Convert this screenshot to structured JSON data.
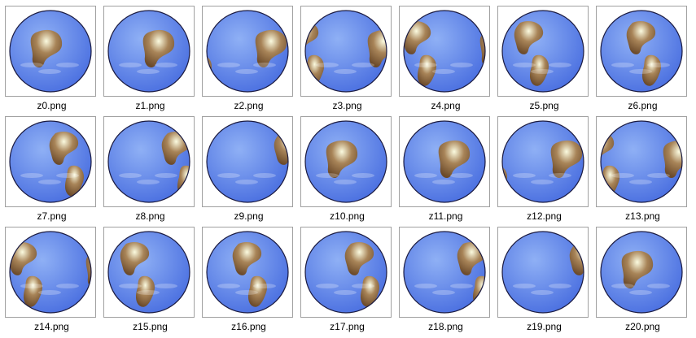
{
  "files": [
    {
      "name": "z0.png",
      "icon": "globe-americas-icon"
    },
    {
      "name": "z1.png",
      "icon": "globe-americas-icon"
    },
    {
      "name": "z2.png",
      "icon": "globe-north-america-pacific-icon"
    },
    {
      "name": "z3.png",
      "icon": "globe-pacific-icon"
    },
    {
      "name": "z4.png",
      "icon": "globe-pacific-icon"
    },
    {
      "name": "z5.png",
      "icon": "globe-pacific-icon"
    },
    {
      "name": "z6.png",
      "icon": "globe-pacific-icon"
    },
    {
      "name": "z7.png",
      "icon": "globe-asia-pacific-icon"
    },
    {
      "name": "z8.png",
      "icon": "globe-asia-australia-icon"
    },
    {
      "name": "z9.png",
      "icon": "globe-asia-australia-icon"
    },
    {
      "name": "z10.png",
      "icon": "globe-asia-australia-icon"
    },
    {
      "name": "z11.png",
      "icon": "globe-asia-icon"
    },
    {
      "name": "z12.png",
      "icon": "globe-asia-india-icon"
    },
    {
      "name": "z13.png",
      "icon": "globe-asia-africa-icon"
    },
    {
      "name": "z14.png",
      "icon": "globe-africa-icon"
    },
    {
      "name": "z15.png",
      "icon": "globe-africa-icon"
    },
    {
      "name": "z16.png",
      "icon": "globe-africa-europe-icon"
    },
    {
      "name": "z17.png",
      "icon": "globe-africa-europe-icon"
    },
    {
      "name": "z18.png",
      "icon": "globe-atlantic-icon"
    },
    {
      "name": "z19.png",
      "icon": "globe-atlantic-americas-icon"
    },
    {
      "name": "z20.png",
      "icon": "globe-south-america-icon"
    }
  ],
  "colors": {
    "ocean": "#4a6fe0",
    "ocean_light": "#8fb0f5",
    "land_dark": "#6b4a2a",
    "land_light": "#a88458",
    "ice": "#fbfbe0",
    "outline": "#1a1a40"
  }
}
